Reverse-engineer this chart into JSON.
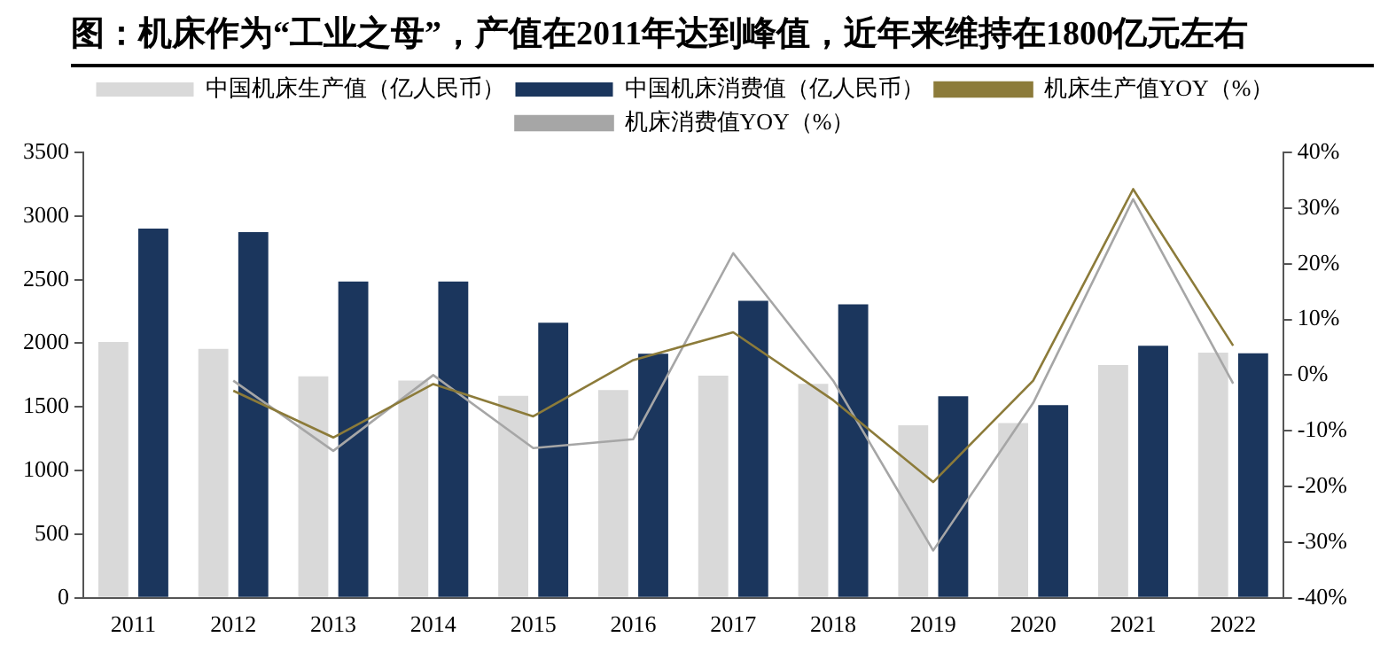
{
  "chart_data": {
    "type": "bar",
    "title": "图：机床作为“工业之母”，产值在2011年达到峰值，近年来维持在1800亿元左右",
    "categories": [
      "2011",
      "2012",
      "2013",
      "2014",
      "2015",
      "2016",
      "2017",
      "2018",
      "2019",
      "2020",
      "2021",
      "2022"
    ],
    "series": [
      {
        "name": "中国机床生产值（亿人民币）",
        "color": "#d9d9d9",
        "values": [
          2010,
          1956,
          1740,
          1707,
          1588,
          1632,
          1745,
          1682,
          1356,
          1373,
          1829,
          1926
        ]
      },
      {
        "name": "中国机床消费值（亿人民币）",
        "color": "#1b365d",
        "values": [
          2901,
          2874,
          2485,
          2485,
          2161,
          1918,
          2334,
          2306,
          1584,
          1514,
          1981,
          1921
        ]
      },
      {
        "name": "机床生产值YOY（%）",
        "type": "line",
        "axis": "y2",
        "color": "#8c7b3a",
        "values": [
          null,
          -2.8,
          -11.2,
          -1.6,
          -7.4,
          2.7,
          7.7,
          -4.5,
          -19.2,
          -1,
          33.4,
          5.3
        ]
      },
      {
        "name": "机床消费值YOY（%）",
        "type": "line",
        "axis": "y2",
        "color": "#a6a6a6",
        "values": [
          null,
          -1,
          -13.6,
          0,
          -13.1,
          -11.5,
          21.9,
          -1,
          -31.5,
          -5,
          31.6,
          -1.5
        ]
      }
    ],
    "ylim": [
      0,
      3500
    ],
    "yticks": [
      0,
      500,
      1000,
      1500,
      2000,
      2500,
      3000,
      3500
    ],
    "y2lim": [
      -40,
      40
    ],
    "y2ticks": [
      {
        "value": -40,
        "label": "-40%"
      },
      {
        "value": -30,
        "label": "-30%"
      },
      {
        "value": -20,
        "label": "-20%"
      },
      {
        "value": -10,
        "label": "-10%"
      },
      {
        "value": 0,
        "label": "0%"
      },
      {
        "value": 10,
        "label": "10%"
      },
      {
        "value": 20,
        "label": "20%"
      },
      {
        "value": 30,
        "label": "30%"
      },
      {
        "value": 40,
        "label": "40%"
      }
    ],
    "grid": false,
    "legend": "top",
    "marker": "none",
    "line_style": "solid"
  }
}
